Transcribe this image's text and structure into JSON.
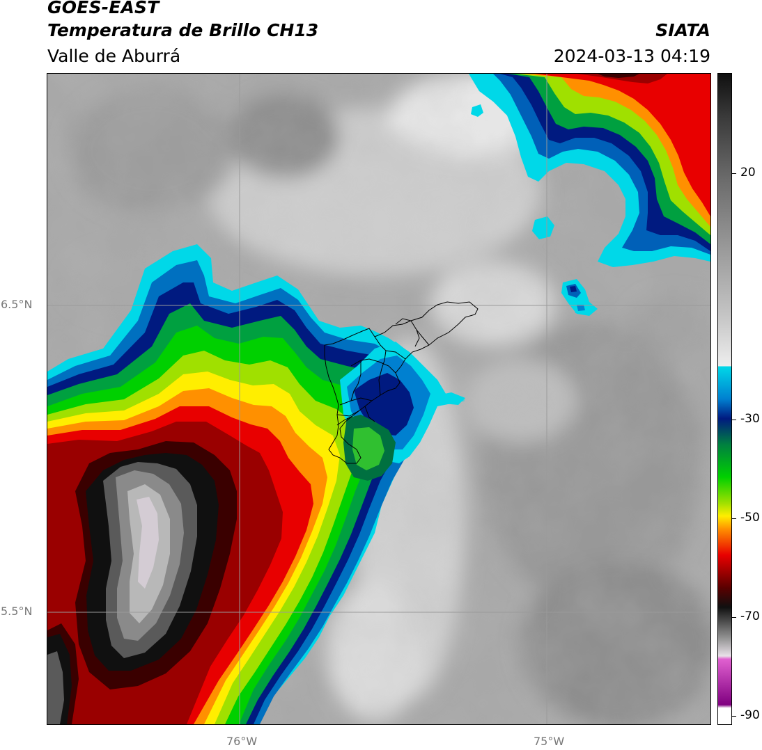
{
  "header": {
    "satellite": "GOES-EAST",
    "product": "Temperatura de Brillo CH13",
    "region": "Valle de Aburrá",
    "organization": "SIATA",
    "datetime": "2024-03-13 04:19"
  },
  "map": {
    "lat_labels": [
      "6.5°N",
      "5.5°N"
    ],
    "lon_labels": [
      "76°W",
      "75°W"
    ],
    "gridline_color": "#9a9a9a",
    "boundary_color": "#000000"
  },
  "colorbar": {
    "tick_labels": [
      "20",
      "-30",
      "-50",
      "-70",
      "-90"
    ],
    "colors": {
      "warm_gray_top": "#101010",
      "cyan": "#00d8e8",
      "blue": "#0050b0",
      "dark_blue": "#001a80",
      "green": "#00b000",
      "lime": "#a0e000",
      "yellow": "#ffee00",
      "orange": "#ff8000",
      "red": "#e80000",
      "dark_red": "#5a0000",
      "magenta": "#e060d0",
      "purple": "#800080"
    }
  }
}
